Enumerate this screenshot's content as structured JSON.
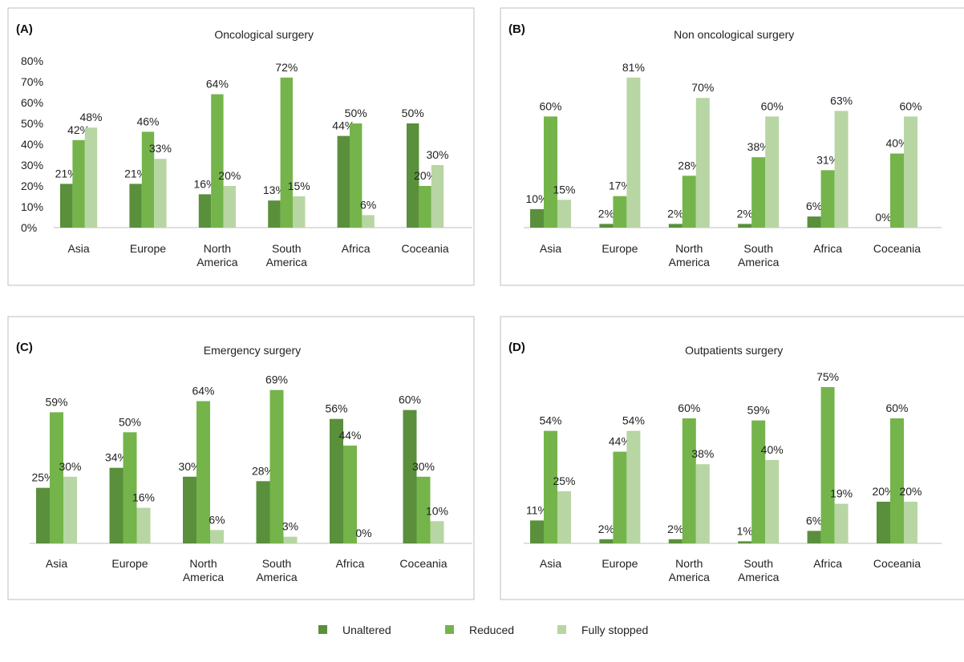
{
  "colors": {
    "unaltered": "#5a8f3c",
    "reduced": "#74b44b",
    "fully_stopped": "#b7d6a3",
    "panel_border": "#bfbfbf",
    "axis": "#bfbfbf"
  },
  "legend": {
    "items": [
      {
        "label": "Unaltered",
        "color": "#5a8f3c"
      },
      {
        "label": "Reduced",
        "color": "#74b44b"
      },
      {
        "label": "Fully stopped",
        "color": "#b7d6a3"
      }
    ]
  },
  "chart_data": [
    {
      "type": "bar",
      "panel_label": "(A)",
      "title": "Oncological surgery",
      "categories": [
        [
          "Asia"
        ],
        [
          "Europe"
        ],
        [
          "North",
          "America"
        ],
        [
          "South",
          "America"
        ],
        [
          "Africa"
        ],
        [
          "Coceania"
        ]
      ],
      "series": [
        {
          "name": "Unaltered",
          "values": [
            21,
            21,
            16,
            13,
            44,
            50
          ]
        },
        {
          "name": "Reduced",
          "values": [
            42,
            46,
            64,
            72,
            50,
            20
          ]
        },
        {
          "name": "Fully stopped",
          "values": [
            48,
            33,
            20,
            15,
            6,
            30
          ]
        }
      ],
      "ylim": [
        0,
        80
      ],
      "yticks": [
        "0%",
        "10%",
        "20%",
        "30%",
        "40%",
        "50%",
        "60%",
        "70%",
        "80%"
      ],
      "value_suffix": "%"
    },
    {
      "type": "bar",
      "panel_label": "(B)",
      "title": "Non oncological surgery",
      "categories": [
        [
          "Asia"
        ],
        [
          "Europe"
        ],
        [
          "North",
          "America"
        ],
        [
          "South",
          "America"
        ],
        [
          "Africa"
        ],
        [
          "Coceania"
        ]
      ],
      "series": [
        {
          "name": "Unaltered",
          "values": [
            10,
            2,
            2,
            2,
            6,
            0
          ]
        },
        {
          "name": "Reduced",
          "values": [
            60,
            17,
            28,
            38,
            31,
            40
          ]
        },
        {
          "name": "Fully stopped",
          "values": [
            15,
            81,
            70,
            60,
            63,
            60
          ]
        }
      ],
      "ylim": [
        0,
        90
      ],
      "yticks": [],
      "value_suffix": "%"
    },
    {
      "type": "bar",
      "panel_label": "(C)",
      "title": "Emergency surgery",
      "categories": [
        [
          "Asia"
        ],
        [
          "Europe"
        ],
        [
          "North",
          "America"
        ],
        [
          "South",
          "America"
        ],
        [
          "Africa"
        ],
        [
          "Coceania"
        ]
      ],
      "series": [
        {
          "name": "Unaltered",
          "values": [
            25,
            34,
            30,
            28,
            56,
            60
          ]
        },
        {
          "name": "Reduced",
          "values": [
            59,
            50,
            64,
            69,
            44,
            30
          ]
        },
        {
          "name": "Fully stopped",
          "values": [
            30,
            16,
            6,
            3,
            0,
            10
          ]
        }
      ],
      "ylim": [
        0,
        75
      ],
      "yticks": [],
      "value_suffix": "%"
    },
    {
      "type": "bar",
      "panel_label": "(D)",
      "title": "Outpatients surgery",
      "categories": [
        [
          "Asia"
        ],
        [
          "Europe"
        ],
        [
          "North",
          "America"
        ],
        [
          "South",
          "America"
        ],
        [
          "Africa"
        ],
        [
          "Coceania"
        ]
      ],
      "series": [
        {
          "name": "Unaltered",
          "values": [
            11,
            2,
            2,
            1,
            6,
            20
          ]
        },
        {
          "name": "Reduced",
          "values": [
            54,
            44,
            60,
            59,
            75,
            60
          ]
        },
        {
          "name": "Fully stopped",
          "values": [
            25,
            54,
            38,
            40,
            19,
            20
          ]
        }
      ],
      "ylim": [
        0,
        80
      ],
      "yticks": [],
      "value_suffix": "%"
    }
  ]
}
